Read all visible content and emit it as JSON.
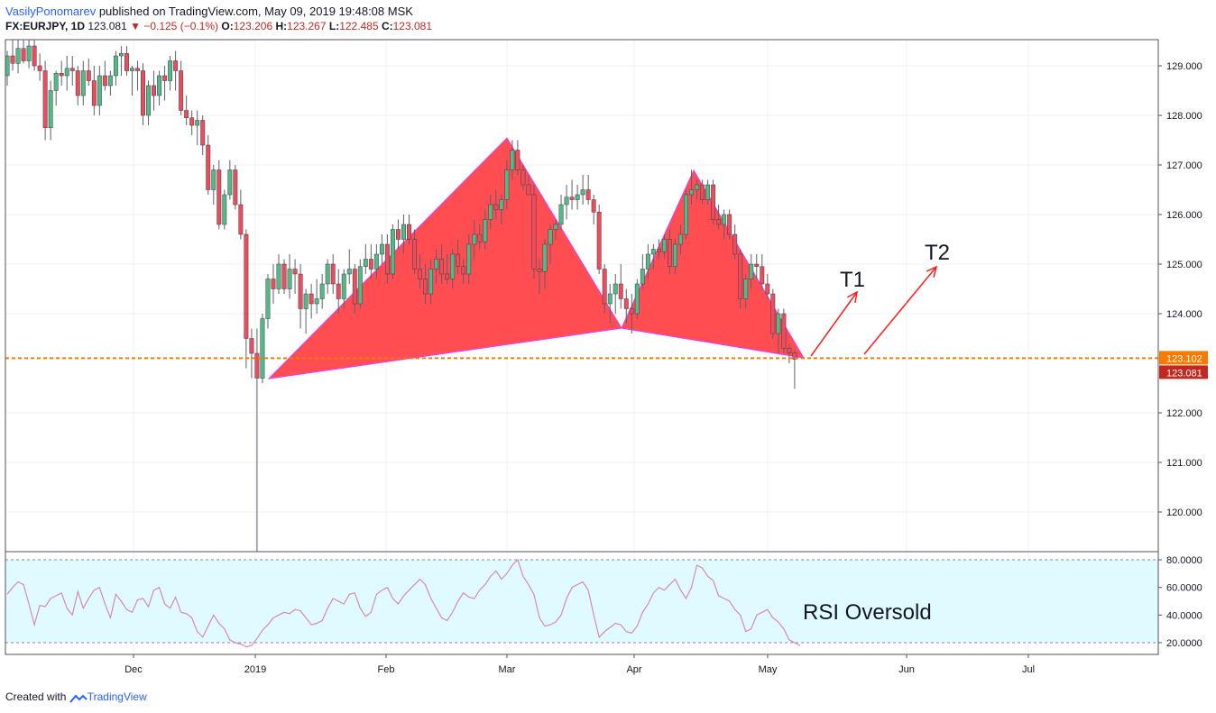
{
  "header": {
    "author": "VasilyPonomarev",
    "published_text": "published on TradingView.com, May 09, 2019 19:48:08 MSK",
    "symbol": "FX:EURJPY, 1D",
    "last": "123.081",
    "change": "▼ −0.125 (−0.1%)",
    "o_label": "O:",
    "o_value": "123.206",
    "h_label": "H:",
    "h_value": "123.267",
    "l_label": "L:",
    "l_value": "122.485",
    "c_label": "C:",
    "c_value": "123.081"
  },
  "footer": {
    "created_with": "Created with",
    "brand": "TradingView"
  },
  "chart_data": [
    {
      "type": "candlestick",
      "symbol": "FX:EURJPY",
      "interval": "1D",
      "x_ticks": [
        "Dec",
        "2019",
        "Feb",
        "Mar",
        "Apr",
        "May",
        "Jun",
        "Jul"
      ],
      "y_ticks": [
        "129.000",
        "128.000",
        "127.000",
        "126.000",
        "125.000",
        "124.000",
        "122.000",
        "121.000",
        "120.000"
      ],
      "ylim": [
        119.2,
        129.5
      ],
      "price_lines": [
        {
          "label": "123.102",
          "value": 123.102,
          "color": "#f57c00",
          "style": "dashed"
        },
        {
          "label": "123.081",
          "value": 123.081,
          "color": "#c2281f"
        }
      ],
      "colors": {
        "up": "#53b987",
        "down": "#eb4d5c"
      },
      "candles_ohlc": [
        [
          128.8,
          129.3,
          128.6,
          129.2
        ],
        [
          129.2,
          129.6,
          128.9,
          129.05
        ],
        [
          129.05,
          129.55,
          128.85,
          129.35
        ],
        [
          129.35,
          129.65,
          129.05,
          129.1
        ],
        [
          129.1,
          129.6,
          128.95,
          129.4
        ],
        [
          129.4,
          129.55,
          128.9,
          129.0
        ],
        [
          129.0,
          129.25,
          128.7,
          128.9
        ],
        [
          128.9,
          129.1,
          127.5,
          127.75
        ],
        [
          127.75,
          128.7,
          127.5,
          128.5
        ],
        [
          128.5,
          128.9,
          128.2,
          128.85
        ],
        [
          128.85,
          129.1,
          128.6,
          128.8
        ],
        [
          128.8,
          129.2,
          128.5,
          128.95
        ],
        [
          128.95,
          129.2,
          128.6,
          128.9
        ],
        [
          128.9,
          129.0,
          128.2,
          128.4
        ],
        [
          128.4,
          129.1,
          128.2,
          128.9
        ],
        [
          128.9,
          129.15,
          128.6,
          128.7
        ],
        [
          128.7,
          129.0,
          128.0,
          128.2
        ],
        [
          128.2,
          129.0,
          128.0,
          128.8
        ],
        [
          128.8,
          129.1,
          128.5,
          128.6
        ],
        [
          128.6,
          128.9,
          128.4,
          128.8
        ],
        [
          128.8,
          129.3,
          128.6,
          129.2
        ],
        [
          129.2,
          129.4,
          128.8,
          129.25
        ],
        [
          129.25,
          129.4,
          128.8,
          128.9
        ],
        [
          128.9,
          129.0,
          128.4,
          128.95
        ],
        [
          128.95,
          129.1,
          128.5,
          128.9
        ],
        [
          128.9,
          129.05,
          127.8,
          128.0
        ],
        [
          128.0,
          128.7,
          127.8,
          128.6
        ],
        [
          128.6,
          128.9,
          128.1,
          128.4
        ],
        [
          128.4,
          128.9,
          128.2,
          128.8
        ],
        [
          128.8,
          129.0,
          128.3,
          128.7
        ],
        [
          128.7,
          129.2,
          128.5,
          129.1
        ],
        [
          129.1,
          129.3,
          128.5,
          128.9
        ],
        [
          128.9,
          129.1,
          128.0,
          128.1
        ],
        [
          128.1,
          128.4,
          127.8,
          127.95
        ],
        [
          127.95,
          128.1,
          127.6,
          127.8
        ],
        [
          127.8,
          128.1,
          127.4,
          127.9
        ],
        [
          127.9,
          128.0,
          127.2,
          127.4
        ],
        [
          127.4,
          127.6,
          126.4,
          126.5
        ],
        [
          126.5,
          127.0,
          126.2,
          126.9
        ],
        [
          126.9,
          127.1,
          125.7,
          125.8
        ],
        [
          125.8,
          126.5,
          125.7,
          126.4
        ],
        [
          126.4,
          127.1,
          126.3,
          126.9
        ],
        [
          126.9,
          127.0,
          126.1,
          126.2
        ],
        [
          126.2,
          126.5,
          125.5,
          125.6
        ],
        [
          125.6,
          125.7,
          122.9,
          123.5
        ],
        [
          123.5,
          123.7,
          122.7,
          123.2
        ],
        [
          123.2,
          123.7,
          119.2,
          122.7
        ],
        [
          122.7,
          124.0,
          122.6,
          123.9
        ],
        [
          123.9,
          124.8,
          123.7,
          124.7
        ],
        [
          124.7,
          125.0,
          124.2,
          124.5
        ],
        [
          124.5,
          125.2,
          124.4,
          125.0
        ],
        [
          125.0,
          125.1,
          124.4,
          124.5
        ],
        [
          124.5,
          125.2,
          124.3,
          124.9
        ],
        [
          124.9,
          125.1,
          124.4,
          124.8
        ],
        [
          124.8,
          125.0,
          123.7,
          124.1
        ],
        [
          124.1,
          124.5,
          123.6,
          124.4
        ],
        [
          124.4,
          124.6,
          123.9,
          124.2
        ],
        [
          124.2,
          124.7,
          124.0,
          124.3
        ],
        [
          124.3,
          124.8,
          124.1,
          124.6
        ],
        [
          124.6,
          125.1,
          124.4,
          125.0
        ],
        [
          125.0,
          125.2,
          124.4,
          124.6
        ],
        [
          124.6,
          124.9,
          124.0,
          124.3
        ],
        [
          124.3,
          124.9,
          124.1,
          124.8
        ],
        [
          124.8,
          125.3,
          124.6,
          124.9
        ],
        [
          124.9,
          125.0,
          124.0,
          124.2
        ],
        [
          124.2,
          125.1,
          124.1,
          124.95
        ],
        [
          124.95,
          125.4,
          124.8,
          125.1
        ],
        [
          125.1,
          125.4,
          124.7,
          124.9
        ],
        [
          124.9,
          125.4,
          124.7,
          125.2
        ],
        [
          125.2,
          125.6,
          125.0,
          125.4
        ],
        [
          125.4,
          125.6,
          124.6,
          124.8
        ],
        [
          124.8,
          125.8,
          124.7,
          125.7
        ],
        [
          125.7,
          125.9,
          125.3,
          125.5
        ],
        [
          125.5,
          126.0,
          125.2,
          125.8
        ],
        [
          125.8,
          126.0,
          125.4,
          125.5
        ],
        [
          125.5,
          125.7,
          124.8,
          124.9
        ],
        [
          124.9,
          125.2,
          124.5,
          124.7
        ],
        [
          124.7,
          125.0,
          124.2,
          124.4
        ],
        [
          124.4,
          125.1,
          124.2,
          124.9
        ],
        [
          124.9,
          125.3,
          124.6,
          125.1
        ],
        [
          125.1,
          125.4,
          124.6,
          124.8
        ],
        [
          124.8,
          125.2,
          124.6,
          124.7
        ],
        [
          124.7,
          125.3,
          124.5,
          125.2
        ],
        [
          125.2,
          125.5,
          124.8,
          124.95
        ],
        [
          124.95,
          125.1,
          124.6,
          124.8
        ],
        [
          124.8,
          125.6,
          124.6,
          125.4
        ],
        [
          125.4,
          125.9,
          125.1,
          125.6
        ],
        [
          125.6,
          125.8,
          125.3,
          125.45
        ],
        [
          125.45,
          126.1,
          125.3,
          125.9
        ],
        [
          125.9,
          126.4,
          125.7,
          126.2
        ],
        [
          126.2,
          126.5,
          125.9,
          126.1
        ],
        [
          126.1,
          126.4,
          125.8,
          126.3
        ],
        [
          126.3,
          127.1,
          126.1,
          126.9
        ],
        [
          126.9,
          127.5,
          126.7,
          127.3
        ],
        [
          127.3,
          127.5,
          126.8,
          126.9
        ],
        [
          126.9,
          127.0,
          126.5,
          126.6
        ],
        [
          126.6,
          126.8,
          126.4,
          126.4
        ],
        [
          126.4,
          126.6,
          124.7,
          124.9
        ],
        [
          124.9,
          125.1,
          124.4,
          124.85
        ],
        [
          124.85,
          125.5,
          124.5,
          125.4
        ],
        [
          125.4,
          125.8,
          125.0,
          125.7
        ],
        [
          125.7,
          125.9,
          125.5,
          125.8
        ],
        [
          125.8,
          126.4,
          125.7,
          126.2
        ],
        [
          126.2,
          126.6,
          125.9,
          126.35
        ],
        [
          126.35,
          126.7,
          126.1,
          126.3
        ],
        [
          126.3,
          126.6,
          126.1,
          126.4
        ],
        [
          126.4,
          126.8,
          126.2,
          126.5
        ],
        [
          126.5,
          126.8,
          126.2,
          126.3
        ],
        [
          126.3,
          126.4,
          125.8,
          126.05
        ],
        [
          126.05,
          126.2,
          124.8,
          124.9
        ],
        [
          124.9,
          125.0,
          124.0,
          124.2
        ],
        [
          124.2,
          124.6,
          123.8,
          124.4
        ],
        [
          124.4,
          124.8,
          124.0,
          124.6
        ],
        [
          124.6,
          125.0,
          124.1,
          124.3
        ],
        [
          124.3,
          124.5,
          123.8,
          124.1
        ],
        [
          124.1,
          124.4,
          123.6,
          124.0
        ],
        [
          124.0,
          124.7,
          123.9,
          124.6
        ],
        [
          124.6,
          125.2,
          124.5,
          124.9
        ],
        [
          124.9,
          125.4,
          124.7,
          125.2
        ],
        [
          125.2,
          125.4,
          124.9,
          125.3
        ],
        [
          125.3,
          125.5,
          125.1,
          125.25
        ],
        [
          125.25,
          125.6,
          125.1,
          125.5
        ],
        [
          125.5,
          125.7,
          124.8,
          124.95
        ],
        [
          124.95,
          125.5,
          124.8,
          125.4
        ],
        [
          125.4,
          125.8,
          125.2,
          125.6
        ],
        [
          125.6,
          126.5,
          125.5,
          126.4
        ],
        [
          126.4,
          126.9,
          126.2,
          126.5
        ],
        [
          126.5,
          126.7,
          126.3,
          126.6
        ],
        [
          126.6,
          126.7,
          126.2,
          126.3
        ],
        [
          126.3,
          126.7,
          126.2,
          126.6
        ],
        [
          126.6,
          126.7,
          125.8,
          125.9
        ],
        [
          125.9,
          126.2,
          125.7,
          125.8
        ],
        [
          125.8,
          126.1,
          125.5,
          126.0
        ],
        [
          126.0,
          126.1,
          125.5,
          125.6
        ],
        [
          125.6,
          125.8,
          125.1,
          125.2
        ],
        [
          125.2,
          125.3,
          124.1,
          124.3
        ],
        [
          124.3,
          124.8,
          124.1,
          124.7
        ],
        [
          124.7,
          125.2,
          124.5,
          125.0
        ],
        [
          125.0,
          125.2,
          124.7,
          124.95
        ],
        [
          124.95,
          125.2,
          124.5,
          124.6
        ],
        [
          124.6,
          124.8,
          124.3,
          124.4
        ],
        [
          124.4,
          124.5,
          123.5,
          123.6
        ],
        [
          123.6,
          124.1,
          123.2,
          124.0
        ],
        [
          124.0,
          124.1,
          123.2,
          123.3
        ],
        [
          123.3,
          123.4,
          123.0,
          123.206
        ],
        [
          123.206,
          123.267,
          122.485,
          123.081
        ]
      ],
      "candles_note": "OHLC per trading day, estimated from the price axis; omitted from display text"
    },
    {
      "type": "line",
      "name": "RSI",
      "y_ticks": [
        "80.0000",
        "60.0000",
        "40.0000",
        "20.0000"
      ],
      "ylim": [
        10,
        85
      ],
      "bands": [
        20,
        80
      ],
      "annotation": "RSI Oversold",
      "values": [
        55,
        60,
        64,
        62,
        48,
        33,
        47,
        46,
        52,
        54,
        56,
        45,
        40,
        57,
        45,
        52,
        58,
        60,
        48,
        38,
        55,
        50,
        44,
        42,
        51,
        52,
        46,
        58,
        60,
        48,
        45,
        53,
        42,
        41,
        38,
        28,
        24,
        32,
        40,
        34,
        30,
        22,
        20,
        19,
        17,
        18,
        23,
        29,
        33,
        38,
        40,
        42,
        41,
        44,
        43,
        38,
        33,
        34,
        36,
        45,
        52,
        50,
        48,
        55,
        56,
        45,
        39,
        42,
        55,
        58,
        60,
        52,
        48,
        54,
        58,
        62,
        66,
        62,
        52,
        45,
        38,
        36,
        42,
        50,
        56,
        53,
        52,
        58,
        62,
        68,
        72,
        66,
        70,
        76,
        80,
        68,
        62,
        55,
        38,
        32,
        33,
        35,
        40,
        52,
        60,
        62,
        64,
        58,
        40,
        24,
        28,
        31,
        34,
        33,
        28,
        27,
        32,
        42,
        48,
        56,
        60,
        58,
        62,
        66,
        58,
        52,
        60,
        76,
        74,
        68,
        65,
        54,
        52,
        50,
        44,
        40,
        28,
        30,
        40,
        42,
        44,
        38,
        35,
        30,
        22,
        20,
        18
      ]
    }
  ],
  "annotations": {
    "t1": "T1",
    "t2": "T2",
    "oversold": "RSI Oversold"
  },
  "colors": {
    "harmonic_fill": "#ff4d52",
    "harmonic_edge": "#e040fb",
    "arrow": "#ff1c1c",
    "rsi_fill": "#e0fbff",
    "rsi_line": "#d98aad",
    "level_line": "#f57c00",
    "last_price": "#c2281f"
  },
  "harmonic_pattern": {
    "points": [
      {
        "date": "2019-01-03",
        "price": 122.7
      },
      {
        "date": "2019-03-01",
        "price": 127.5
      },
      {
        "date": "2019-03-26",
        "price": 123.7
      },
      {
        "date": "2019-04-15",
        "price": 126.9
      },
      {
        "date": "2019-05-09",
        "price": 123.0
      }
    ]
  }
}
